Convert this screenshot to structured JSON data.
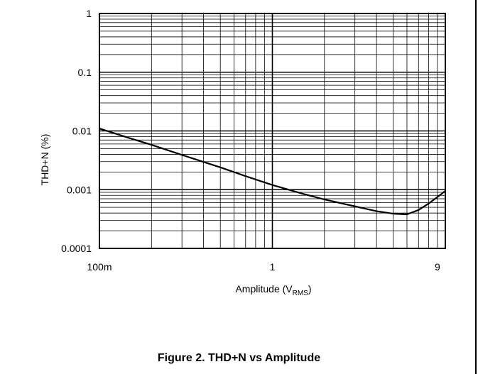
{
  "caption": "Figure 2. THD+N vs Amplitude",
  "chart_data": {
    "type": "line",
    "title": "",
    "xlabel": "Amplitude (V",
    "xlabel_sub": "RMS",
    "xlabel_close": ")",
    "ylabel": "THD+N (%)",
    "xscale": "log",
    "yscale": "log",
    "xlim": [
      0.1,
      10
    ],
    "ylim": [
      0.0001,
      1
    ],
    "grid": true,
    "xticks": [
      {
        "value": 0.1,
        "label": "100m"
      },
      {
        "value": 1,
        "label": "1"
      },
      {
        "value": 9,
        "label": "9"
      }
    ],
    "yticks": [
      {
        "value": 1,
        "label": "1"
      },
      {
        "value": 0.1,
        "label": "0.1"
      },
      {
        "value": 0.01,
        "label": "0.01"
      },
      {
        "value": 0.001,
        "label": "0.001"
      },
      {
        "value": 0.0001,
        "label": "0.0001"
      }
    ],
    "series": [
      {
        "color": "#000000",
        "x": [
          0.1,
          0.15,
          0.2,
          0.3,
          0.5,
          0.7,
          1.0,
          1.5,
          2.0,
          3.0,
          4.0,
          5.0,
          6.0,
          7.0,
          8.0,
          9.0,
          10.0
        ],
        "y": [
          0.011,
          0.0075,
          0.0058,
          0.0039,
          0.0024,
          0.0017,
          0.0012,
          0.00085,
          0.00068,
          0.00052,
          0.00043,
          0.00039,
          0.00038,
          0.00045,
          0.00058,
          0.00075,
          0.00095
        ]
      }
    ]
  }
}
